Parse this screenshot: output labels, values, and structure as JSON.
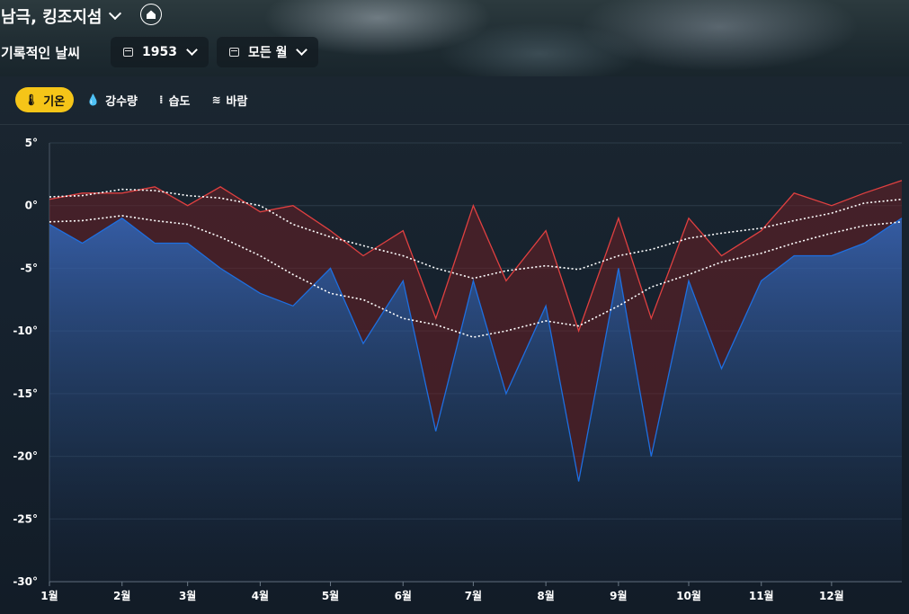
{
  "header": {
    "location": "남극, 킹조지섬",
    "section_title": "기록적인 날씨",
    "year_selector": "1953",
    "month_selector": "모든 월"
  },
  "tabs": [
    {
      "label": "기온",
      "icon": "thermometer-icon",
      "active": true
    },
    {
      "label": "강수량",
      "icon": "droplet-icon",
      "active": false
    },
    {
      "label": "습도",
      "icon": "humidity-icon",
      "active": false
    },
    {
      "label": "바람",
      "icon": "wind-icon",
      "active": false
    }
  ],
  "colors": {
    "accent": "#f5c518",
    "max_line": "#e04040",
    "min_line": "#1e6fe0"
  },
  "chart_data": {
    "type": "line",
    "ylim": [
      -30,
      5
    ],
    "yticks": [
      "5°",
      "0°",
      "-5°",
      "-10°",
      "-15°",
      "-20°",
      "-25°",
      "-30°"
    ],
    "xticks": [
      "1월",
      "2월",
      "3월",
      "4월",
      "5월",
      "6월",
      "7월",
      "8월",
      "9월",
      "10월",
      "11월",
      "12월"
    ],
    "x": [
      1,
      15,
      32,
      46,
      60,
      74,
      91,
      105,
      121,
      135,
      152,
      166,
      182,
      196,
      213,
      227,
      244,
      258,
      274,
      288,
      305,
      319,
      335,
      349,
      365
    ],
    "series": [
      {
        "values": [
          0.5,
          1,
          1,
          1.5,
          0,
          1.5,
          -0.5,
          0,
          -2,
          -4,
          -2,
          -9,
          0,
          -6,
          -2,
          -10,
          -1,
          -9,
          -1,
          -4,
          -2,
          1,
          0,
          1,
          2
        ]
      },
      {
        "values": [
          -1.5,
          -3,
          -1,
          -3,
          -3,
          -5,
          -7,
          -8,
          -5,
          -11,
          -6,
          -18,
          -6,
          -15,
          -8,
          -22,
          -5,
          -20,
          -6,
          -13,
          -6,
          -4,
          -4,
          -3,
          -1
        ]
      },
      {
        "values": [
          0.7,
          0.8,
          1.3,
          1.2,
          0.8,
          0.6,
          0,
          -1.5,
          -2.5,
          -3.2,
          -4,
          -5,
          -5.8,
          -5.2,
          -4.8,
          -5.1,
          -4,
          -3.5,
          -2.6,
          -2.2,
          -1.8,
          -1.2,
          -0.6,
          0.2,
          0.5
        ]
      },
      {
        "values": [
          -1.3,
          -1.2,
          -0.8,
          -1.2,
          -1.5,
          -2.5,
          -4,
          -5.5,
          -7,
          -7.5,
          -9,
          -9.5,
          -10.5,
          -10,
          -9.2,
          -9.6,
          -8,
          -6.5,
          -5.5,
          -4.5,
          -3.8,
          -3,
          -2.2,
          -1.6,
          -1.3
        ]
      }
    ]
  }
}
